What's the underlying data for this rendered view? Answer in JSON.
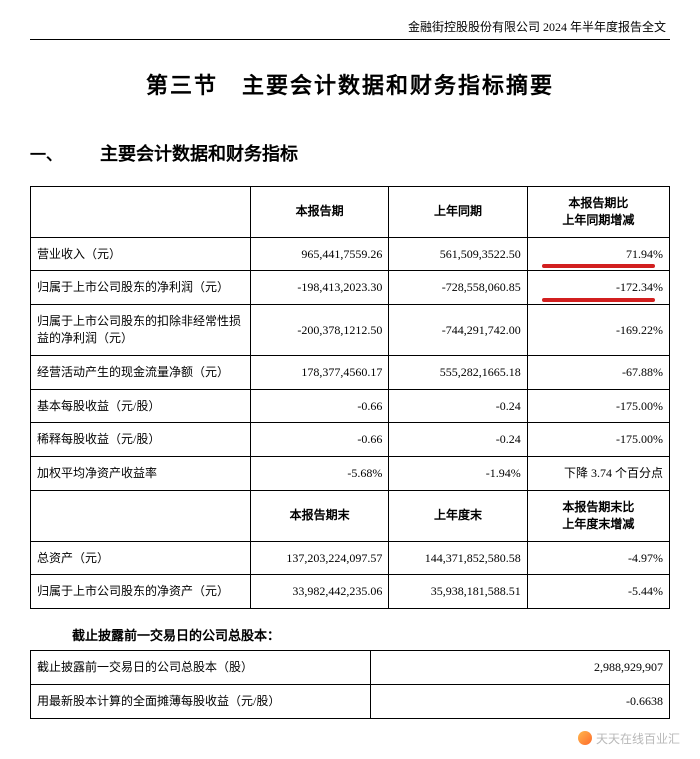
{
  "header_text": "金融街控股股份有限公司 2024 年半年度报告全文",
  "title": "第三节　主要会计数据和财务指标摘要",
  "section_number": "一、",
  "section_title": "主要会计数据和财务指标",
  "table1": {
    "head": [
      "",
      "本报告期",
      "上年同期",
      "本报告期比\n上年同期增减"
    ],
    "rows": [
      [
        "营业收入（元）",
        "965,441,7559.26",
        "561,509,3522.50",
        "71.94%"
      ],
      [
        "归属于上市公司股东的净利润（元）",
        "-198,413,2023.30",
        "-728,558,060.85",
        "-172.34%"
      ],
      [
        "归属于上市公司股东的扣除非经常性损益的净利润（元）",
        "-200,378,1212.50",
        "-744,291,742.00",
        "-169.22%"
      ],
      [
        "经营活动产生的现金流量净额（元）",
        "178,377,4560.17",
        "555,282,1665.18",
        "-67.88%"
      ],
      [
        "基本每股收益（元/股）",
        "-0.66",
        "-0.24",
        "-175.00%"
      ],
      [
        "稀释每股收益（元/股）",
        "-0.66",
        "-0.24",
        "-175.00%"
      ],
      [
        "加权平均净资产收益率",
        "-5.68%",
        "-1.94%",
        "下降 3.74 个百分点"
      ]
    ],
    "head2": [
      "",
      "本报告期末",
      "上年度末",
      "本报告期末比\n上年度末增减"
    ],
    "rows2": [
      [
        "总资产（元）",
        "137,203,224,097.57",
        "144,371,852,580.58",
        "-4.97%"
      ],
      [
        "归属于上市公司股东的净资产（元）",
        "33,982,442,235.06",
        "35,938,181,588.51",
        "-5.44%"
      ]
    ],
    "highlight_rows": [
      0,
      1
    ]
  },
  "subheading": "截止披露前一交易日的公司总股本：",
  "table2_rows": [
    [
      "截止披露前一交易日的公司总股本（股）",
      "2,988,929,907"
    ],
    [
      "用最新股本计算的全面摊薄每股收益（元/股）",
      "-0.6638"
    ]
  ],
  "watermark": "天天在线百业汇"
}
